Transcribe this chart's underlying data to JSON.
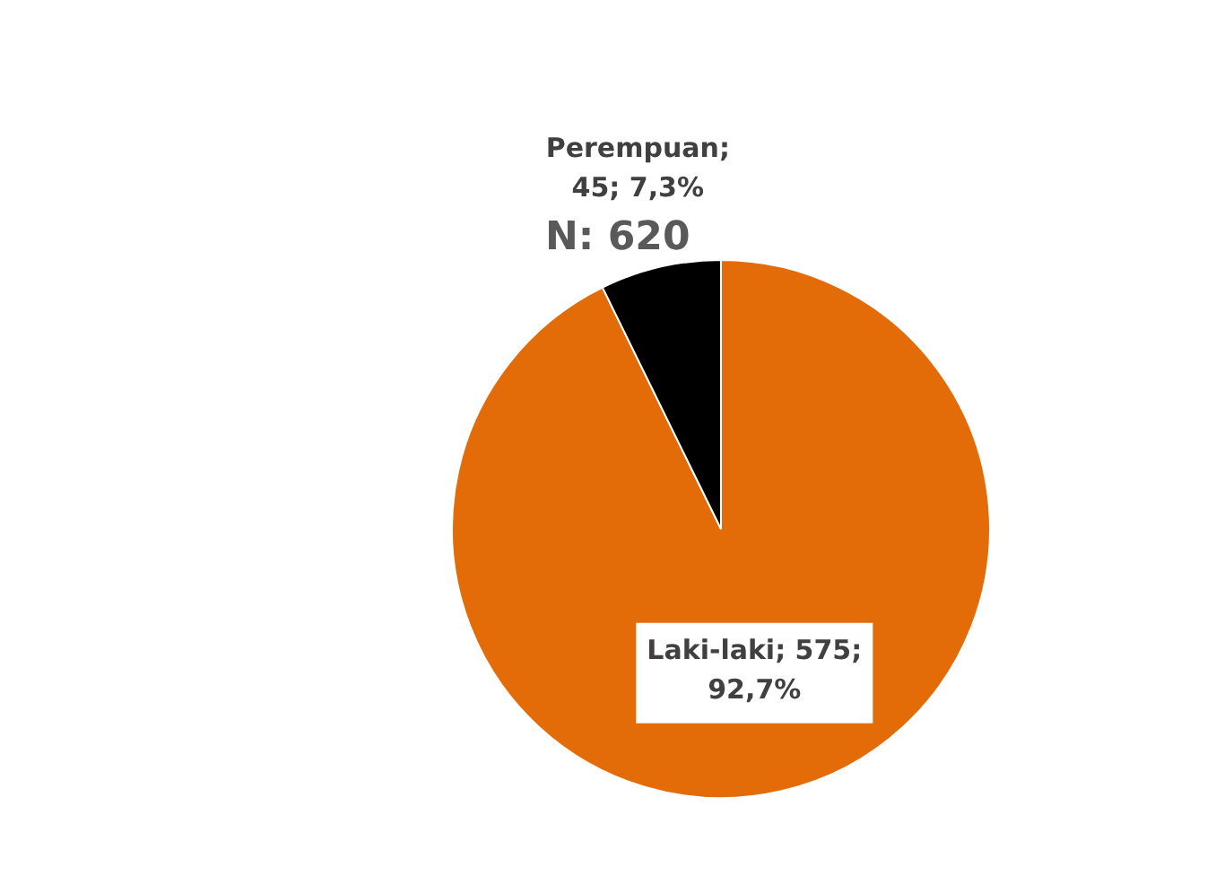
{
  "chart_data": {
    "type": "pie",
    "categories": [
      "Laki-laki",
      "Perempuan"
    ],
    "values": [
      575,
      45
    ],
    "colors": [
      "#e36c09",
      "#000000"
    ],
    "value_labels": [
      "; 575; 92,7%",
      "; 45; 7,3%"
    ],
    "annotations": [
      "N: 620"
    ]
  }
}
